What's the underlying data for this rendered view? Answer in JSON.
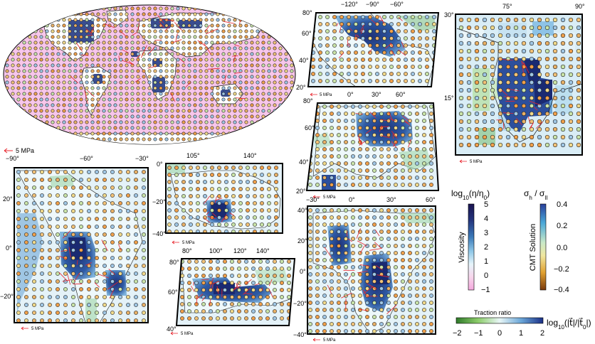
{
  "scale_labels": {
    "global": "5 MPa",
    "small": "5 MPa",
    "india": "5 MPa"
  },
  "panels": {
    "north_america": {
      "lon_ticks": [
        "−120°",
        "−90°",
        "−60°"
      ],
      "lat_ticks": [
        "80°",
        "60°",
        "40°",
        "20°"
      ]
    },
    "india": {
      "lon_ticks": [
        "75°",
        "90°"
      ],
      "lat_ticks": [
        "30°",
        "15°"
      ]
    },
    "eurasia": {
      "lon_ticks": [
        "0°",
        "30°",
        "60°"
      ],
      "lat_ticks": [
        "80°",
        "60°",
        "40°",
        "20°"
      ]
    },
    "africa": {
      "lon_ticks": [
        "−30°",
        "0°",
        "30°",
        "60°"
      ],
      "lat_ticks": [
        "40°",
        "20°",
        "0°",
        "−20°",
        "−40°"
      ]
    },
    "south_america": {
      "lon_ticks": [
        "−90°",
        "−60°",
        "−30°"
      ],
      "lat_ticks": [
        "20°",
        "0°",
        "−20°"
      ]
    },
    "australia": {
      "lon_ticks": [
        "105°",
        "140°"
      ],
      "lat_ticks": [
        "0°",
        "−20°",
        "−40°"
      ]
    },
    "siberia": {
      "lon_ticks": [
        "100°",
        "120°",
        "140°"
      ],
      "lat_ticks": [
        "80°",
        "60°",
        "40°"
      ]
    }
  },
  "colorbars": {
    "viscosity": {
      "title_base": "log",
      "title_sub": "10",
      "title_rest": "(η/η",
      "title_sub2": "0",
      "title_end": ")",
      "axis_label": "Viscosity",
      "ticks": [
        "5",
        "4",
        "3",
        "2",
        "1",
        "0",
        "−1"
      ],
      "colors": [
        "#1a1450",
        "#23327a",
        "#3a78b8",
        "#8fc8e8",
        "#e6f4fa",
        "#f7d6ec",
        "#f4a8dd"
      ]
    },
    "cmt": {
      "title_main": "σ",
      "title_sub": "h",
      "title_mid": " / σ",
      "title_sub2": "II",
      "axis_label": "CMT Solution",
      "ticks": [
        "0.4",
        "0.2",
        "0.0",
        "−0.2",
        "−0.4"
      ],
      "colors": [
        "#2a3f9a",
        "#4aa8d8",
        "#c9e9c8",
        "#f0e7a0",
        "#e0a030",
        "#7a3a0c"
      ]
    },
    "traction": {
      "title": "Traction ratio",
      "ticks": [
        "−2",
        "−1",
        "0",
        "1",
        "2"
      ],
      "right_label_base": "log",
      "right_label_sub": "10",
      "right_label_rest": "(|t⃗|/|t⃗",
      "right_label_sub2": "0",
      "right_label_end": "|)",
      "colors": [
        "#2f7a2a",
        "#8ccc6a",
        "#e8f6f6",
        "#6aa6d8",
        "#1a2f86"
      ]
    }
  },
  "colors": {
    "ocean": "#f7c6ea",
    "land": "#ffffff",
    "low_traction": "#e4f2f8",
    "craton_dark": "#243a84",
    "craton_mid": "#4f8ec8",
    "arrow": "#e8242c",
    "coast": "#1a1a1a",
    "dot_fill": "#f2c277",
    "dot_edge": "#222222"
  }
}
